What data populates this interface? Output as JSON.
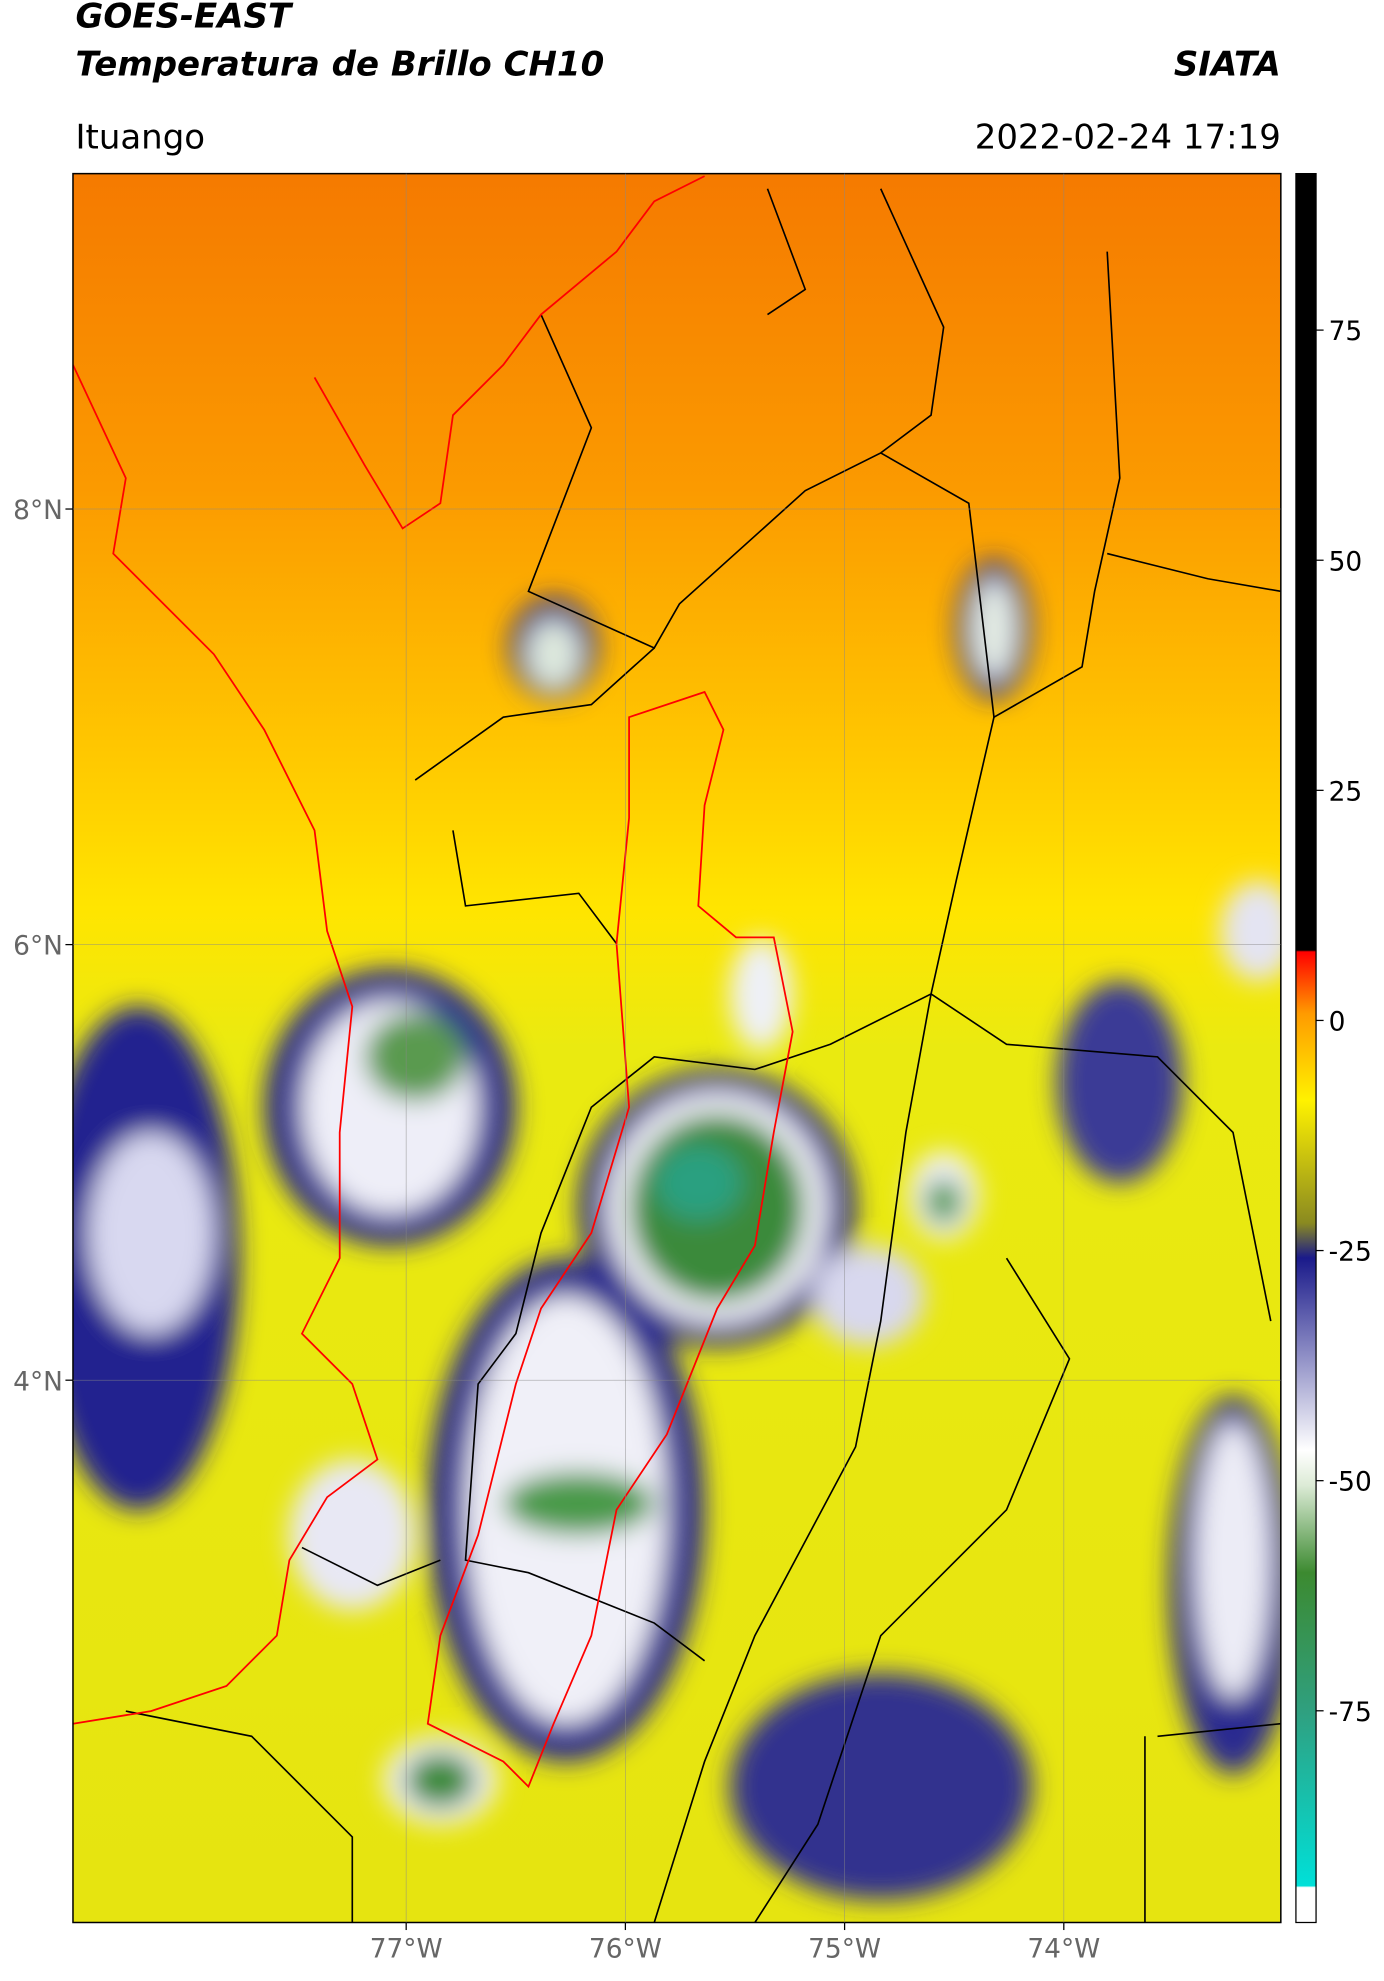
{
  "chart_data": {
    "type": "map",
    "title": "GOES-EAST",
    "subtitle": "Temperatura de Brillo CH10",
    "source": "SIATA",
    "region": "Ituango",
    "datetime": "2022-02-24 17:19",
    "xlim": [
      -78.52,
      -73.01
    ],
    "ylim": [
      1.51,
      9.54
    ],
    "xticks": [
      {
        "value": -77,
        "label": "77°W"
      },
      {
        "value": -76,
        "label": "76°W"
      },
      {
        "value": -75,
        "label": "75°W"
      },
      {
        "value": -74,
        "label": "74°W"
      }
    ],
    "yticks": [
      {
        "value": 8,
        "label": "8°N"
      },
      {
        "value": 6,
        "label": "6°N"
      },
      {
        "value": 4,
        "label": "4°N"
      }
    ],
    "grid": true,
    "colorbar": {
      "lim": [
        -98,
        92
      ],
      "ticks": [
        75,
        50,
        25,
        0,
        -25,
        -50,
        -75
      ]
    }
  }
}
